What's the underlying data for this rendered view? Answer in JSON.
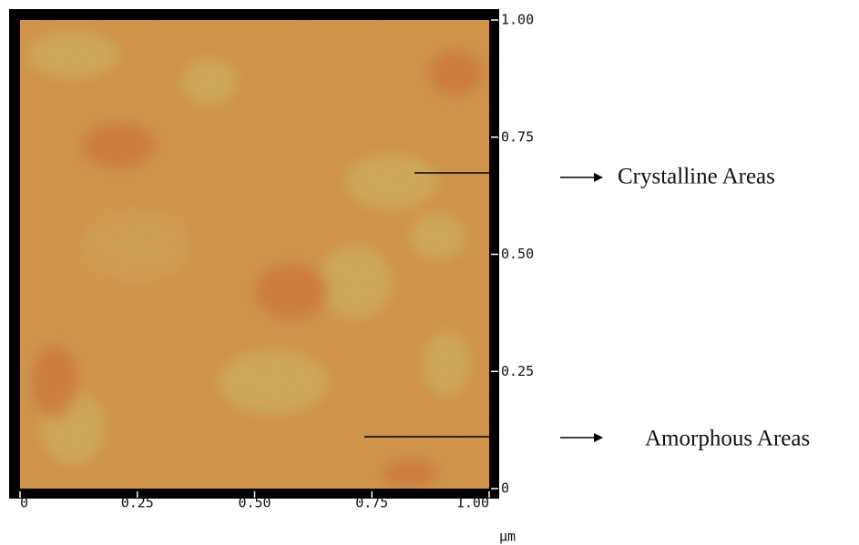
{
  "chart_data": {
    "type": "image",
    "x_label": "μm",
    "xlim": [
      0,
      1
    ],
    "ylim": [
      0,
      1
    ],
    "xticks": [
      0,
      {
        "value": 0.25,
        "label": "0.25"
      },
      {
        "value": 0.5,
        "label": "0.50"
      },
      {
        "value": 0.75,
        "label": "0.75"
      },
      {
        "value": 1,
        "label": "1.00"
      }
    ],
    "yticks": [
      0,
      {
        "value": 0.25,
        "label": "0.25"
      },
      {
        "value": 0.5,
        "label": "0.50"
      },
      {
        "value": 0.75,
        "label": "0.75"
      },
      {
        "value": 1,
        "label": "1.00"
      }
    ],
    "annotations": [
      "Crystalline Areas",
      "Amorphous Areas"
    ]
  }
}
